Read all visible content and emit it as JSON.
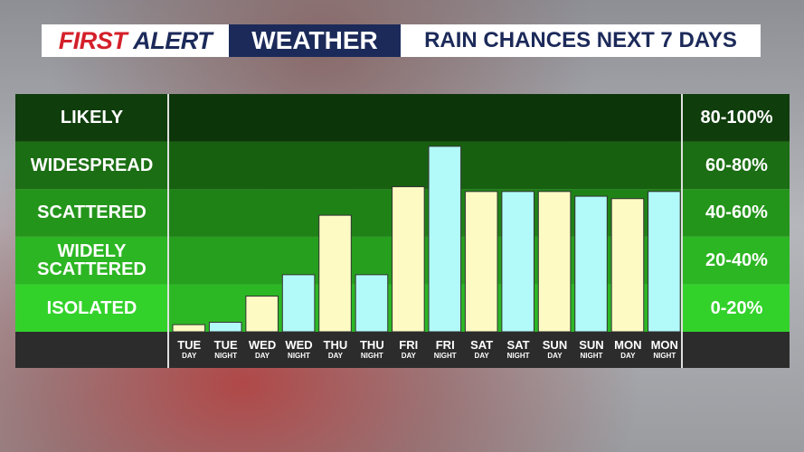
{
  "header": {
    "brand_first": "FIRST",
    "brand_alert": "ALERT",
    "brand_weather": "WEATHER"
  },
  "chart_data": {
    "type": "bar",
    "title": "RAIN CHANCES NEXT 7 DAYS",
    "categories": [
      [
        "TUE",
        "DAY"
      ],
      [
        "TUE",
        "NIGHT"
      ],
      [
        "WED",
        "DAY"
      ],
      [
        "WED",
        "NIGHT"
      ],
      [
        "THU",
        "DAY"
      ],
      [
        "THU",
        "NIGHT"
      ],
      [
        "FRI",
        "DAY"
      ],
      [
        "FRI",
        "NIGHT"
      ],
      [
        "SAT",
        "DAY"
      ],
      [
        "SAT",
        "NIGHT"
      ],
      [
        "SUN",
        "DAY"
      ],
      [
        "SUN",
        "NIGHT"
      ],
      [
        "MON",
        "DAY"
      ],
      [
        "MON",
        "NIGHT"
      ]
    ],
    "values": [
      3,
      4,
      15,
      24,
      49,
      24,
      61,
      78,
      59,
      59,
      59,
      57,
      56,
      59
    ],
    "colors": [
      "#fdfbc3",
      "#b2fafa",
      "#fdfbc3",
      "#b2fafa",
      "#fdfbc3",
      "#b2fafa",
      "#fdfbc3",
      "#b2fafa",
      "#fdfbc3",
      "#b2fafa",
      "#fdfbc3",
      "#b2fafa",
      "#fdfbc3",
      "#b2fafa"
    ],
    "ylim": [
      0,
      100
    ],
    "bands": [
      {
        "name": "LIKELY",
        "label": "80-100%",
        "from": 80,
        "to": 100,
        "color": "#0f3d0c"
      },
      {
        "name": "WIDESPREAD",
        "label": "60-80%",
        "from": 60,
        "to": 80,
        "color": "#1b6e13"
      },
      {
        "name": "SCATTERED",
        "label": "40-60%",
        "from": 40,
        "to": 60,
        "color": "#24951b"
      },
      {
        "name": "WIDELY SCATTERED",
        "label": "20-40%",
        "from": 20,
        "to": 40,
        "color": "#2cb623"
      },
      {
        "name": "ISOLATED",
        "label": "0-20%",
        "from": 0,
        "to": 20,
        "color": "#33d22b"
      }
    ]
  }
}
